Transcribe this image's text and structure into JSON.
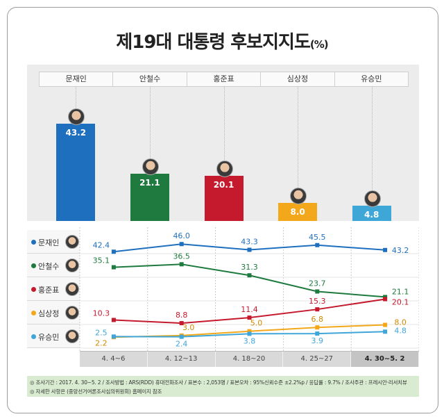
{
  "title": "제19대 대통령 후보지지도",
  "title_unit": "(%)",
  "colors": {
    "문재인": "#1f6fbf",
    "안철수": "#1e7a3e",
    "홍준표": "#c5192d",
    "심상정": "#f2a81a",
    "유승민": "#3fa6d8"
  },
  "chart_data": [
    {
      "type": "bar",
      "categories": [
        "문재인",
        "안철수",
        "홍준표",
        "심상정",
        "유승민"
      ],
      "values": [
        43.2,
        21.1,
        20.1,
        8.0,
        4.8
      ],
      "value_labels": [
        "43.2",
        "21.1",
        "20.1",
        "8.0",
        "4.8"
      ],
      "title": "",
      "xlabel": "",
      "ylabel": "",
      "ylim": [
        0,
        50
      ]
    },
    {
      "type": "line",
      "categories": [
        "4. 4~6",
        "4. 12~13",
        "4. 18~20",
        "4. 25~27",
        "4. 30~5. 2"
      ],
      "series": [
        {
          "name": "문재인",
          "values": [
            42.4,
            46.0,
            43.3,
            45.5,
            43.2
          ],
          "labels": [
            "42.4",
            "46.0",
            "43.3",
            "45.5",
            "43.2"
          ]
        },
        {
          "name": "안철수",
          "values": [
            35.1,
            36.5,
            31.3,
            23.7,
            21.1
          ],
          "labels": [
            "35.1",
            "36.5",
            "31.3",
            "23.7",
            "21.1"
          ]
        },
        {
          "name": "홍준표",
          "values": [
            10.3,
            8.8,
            11.4,
            15.3,
            20.1
          ],
          "labels": [
            "10.3",
            "8.8",
            "11.4",
            "15.3",
            "20.1"
          ]
        },
        {
          "name": "심상정",
          "values": [
            2.2,
            3.0,
            5.0,
            6.8,
            8.0
          ],
          "labels": [
            "2.2",
            "3.0",
            "5.0",
            "6.8",
            "8.0"
          ]
        },
        {
          "name": "유승민",
          "values": [
            2.5,
            2.4,
            3.8,
            3.9,
            4.8
          ],
          "labels": [
            "2.5",
            "2.4",
            "3.8",
            "3.9",
            "4.8"
          ]
        }
      ],
      "ylim": [
        0,
        50
      ],
      "grid": true,
      "legend": "left"
    }
  ],
  "footer": {
    "line1": "◎ 조사기간 : 2017. 4. 30~5. 2 / 조사방법 : ARS(RDD) 휴대전화조사 / 표본수 : 2,053명 / 표본오차 : 95%신뢰수준 ±2.2%p / 응답률 : 9.7% / 조사주관 : 프레시안·리서치뷰",
    "line2": "◎ 자세한 사항은 (중앙선거여론조사심의위원회) 홈페이지 참조"
  }
}
